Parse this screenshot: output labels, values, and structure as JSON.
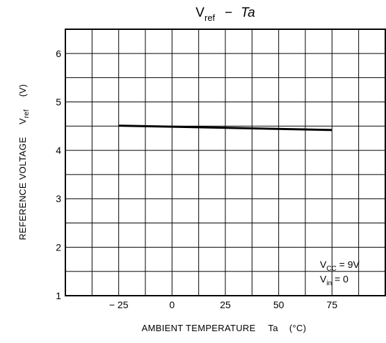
{
  "chart_data": {
    "type": "line",
    "title": {
      "v_main": "V",
      "v_sub": "ref",
      "dash": "−",
      "ta": "Ta"
    },
    "xlabel": {
      "text": "AMBIENT TEMPERATURE",
      "symbol": "Ta",
      "unit": "(°C)"
    },
    "ylabel": {
      "text": "REFERENCE VOLTAGE",
      "symbol_main": "V",
      "symbol_sub": "ref",
      "unit": "(V)"
    },
    "xlim": [
      -50,
      100
    ],
    "ylim": [
      1,
      6.5
    ],
    "x_ticks": [
      -25,
      0,
      25,
      50,
      75
    ],
    "x_tick_labels": [
      "− 25",
      "0",
      "25",
      "50",
      "75"
    ],
    "y_ticks": [
      1,
      2,
      3,
      4,
      5,
      6
    ],
    "y_tick_labels": [
      "1",
      "2",
      "3",
      "4",
      "5",
      "6"
    ],
    "x_grid_step": 12.5,
    "y_grid_step": 0.5,
    "grid": true,
    "series": [
      {
        "x": [
          -25,
          75
        ],
        "y": [
          4.51,
          4.42
        ]
      }
    ],
    "annotation": {
      "line1_main": "V",
      "line1_sub": "CC",
      "line1_rest": " = 9V",
      "line2_main": "V",
      "line2_sub": "in",
      "line2_rest": " = 0",
      "placement": "bottom-right"
    }
  }
}
